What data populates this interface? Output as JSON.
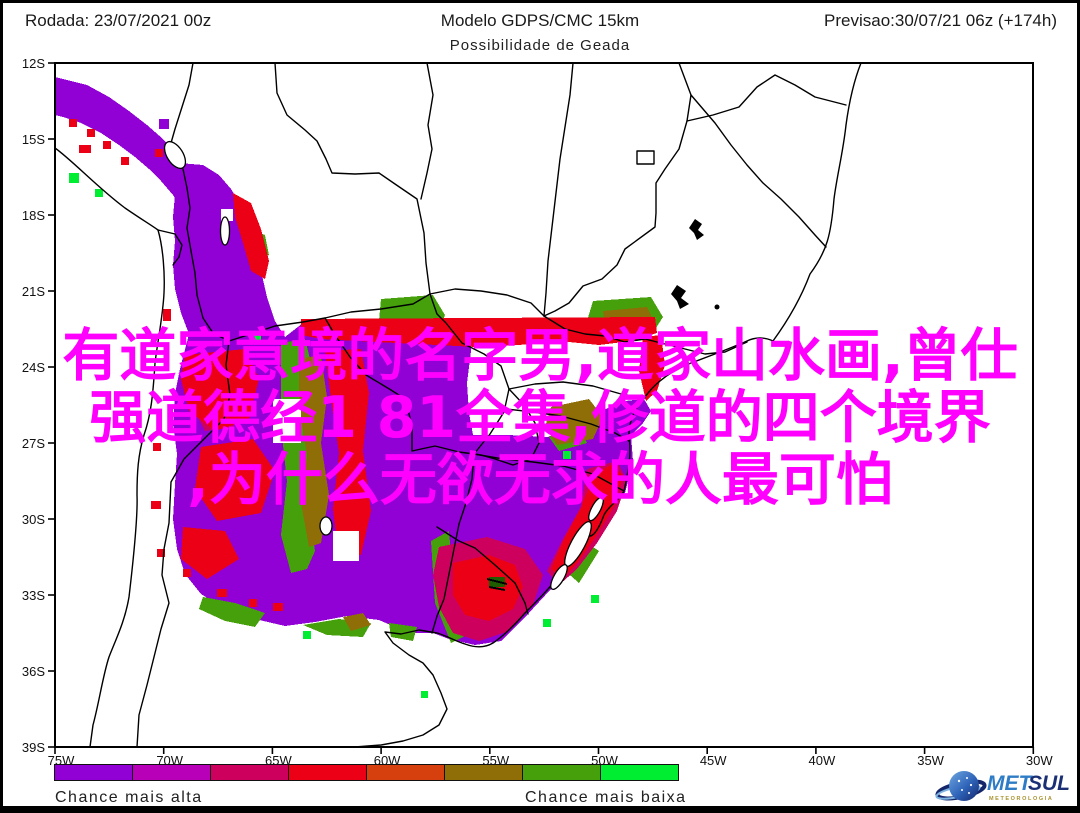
{
  "header": {
    "run_label": "Rodada: 23/07/2021 00z",
    "model_label": "Modelo GDPS/CMC 15km",
    "forecast_label": "Previsao:30/07/21 06z (+174h)"
  },
  "title": "Possibilidade de Geada",
  "overlay_text": {
    "color": "#FF00FF",
    "lines": [
      "有道家意境的名字男,道家山水画,曾仕",
      "强道德经1 81全集,修道的四个境界",
      ",为什么无欲无求的人最可怕"
    ]
  },
  "map": {
    "lat_ticks": [
      "12S",
      "15S",
      "18S",
      "21S",
      "24S",
      "27S",
      "30S",
      "33S",
      "36S",
      "39S"
    ],
    "lon_ticks": [
      "75W",
      "70W",
      "65W",
      "60W",
      "55W",
      "50W",
      "45W",
      "40W",
      "35W",
      "30W"
    ]
  },
  "palette": {
    "purple": "#9100D4",
    "magenta": "#B800B8",
    "crimson": "#CE005E",
    "red": "#EC0016",
    "vermilion": "#D6400E",
    "olive": "#8F6E08",
    "green": "#45A00C",
    "bright_green": "#00EE32"
  },
  "legend": {
    "colors": [
      "#9100D4",
      "#B800B8",
      "#CE005E",
      "#EC0016",
      "#D6400E",
      "#8F6E08",
      "#45A00C",
      "#00EE32"
    ],
    "label_high": "Chance mais alta",
    "label_low": "Chance mais baixa"
  },
  "logo": {
    "text_primary": "MET",
    "text_secondary": "SUL",
    "subtitle": "METEOROLOGIA",
    "color_primary": "#2E7CC6",
    "color_secondary": "#1A2F74",
    "color_subtitle": "#A8922E"
  },
  "chart_data": {
    "type": "heatmap",
    "title": "Possibilidade de Geada",
    "xlabel_ticks": [
      "75W",
      "70W",
      "65W",
      "60W",
      "55W",
      "50W",
      "45W",
      "40W",
      "35W",
      "30W"
    ],
    "ylabel_ticks": [
      "12S",
      "15S",
      "18S",
      "21S",
      "24S",
      "27S",
      "30S",
      "33S",
      "36S",
      "39S"
    ],
    "legend_scale": {
      "ordered_colors_high_to_low": [
        "#9100D4",
        "#B800B8",
        "#CE005E",
        "#EC0016",
        "#D6400E",
        "#8F6E08",
        "#45A00C",
        "#00EE32"
      ],
      "high_label": "Chance mais alta",
      "low_label": "Chance mais baixa"
    },
    "coverage_description": "Highest frost chance (purple) along the Peru-Bolivia Andes, Bolivian Altiplano, northwest Argentina, Paraguay, Uruguay and South Brazil; red/olive/green fringes of lower chance around the purple core; white elsewhere"
  }
}
